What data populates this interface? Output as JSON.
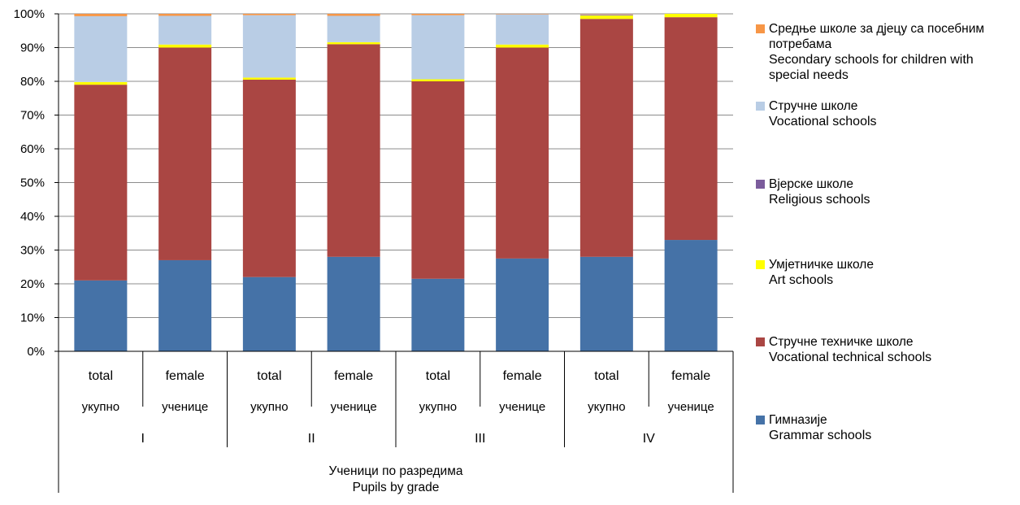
{
  "chart_data": {
    "type": "bar",
    "stacked": "percent",
    "y_ticks": [
      "0%",
      "10%",
      "20%",
      "30%",
      "40%",
      "50%",
      "60%",
      "70%",
      "80%",
      "90%",
      "100%"
    ],
    "ylim": [
      0,
      100
    ],
    "grid": true,
    "legend_position": "right",
    "categories": [
      {
        "en": "total",
        "local": "укупно",
        "grade": "I"
      },
      {
        "en": "female",
        "local": "ученице",
        "grade": "I"
      },
      {
        "en": "total",
        "local": "укупно",
        "grade": "II"
      },
      {
        "en": "female",
        "local": "ученице",
        "grade": "II"
      },
      {
        "en": "total",
        "local": "укупно",
        "grade": "III"
      },
      {
        "en": "female",
        "local": "ученице",
        "grade": "III"
      },
      {
        "en": "total",
        "local": "укупно",
        "grade": "IV"
      },
      {
        "en": "female",
        "local": "ученице",
        "grade": "IV"
      }
    ],
    "groups": [
      "I",
      "II",
      "III",
      "IV"
    ],
    "xlabel_local": "Ученици по разредима",
    "xlabel_en": "Pupils by grade",
    "series": [
      {
        "name_local": "Гимназије",
        "name_en": "Grammar schools",
        "color": "#4572a7",
        "values": [
          21,
          27,
          22,
          28,
          21.5,
          27.5,
          28,
          33
        ]
      },
      {
        "name_local": "Стручне техничке школе",
        "name_en": "Vocational technical schools",
        "color": "#aa4643",
        "values": [
          58,
          63,
          58.5,
          63,
          58.5,
          62.5,
          70.5,
          66
        ]
      },
      {
        "name_local": "Умјетничке школе",
        "name_en": "Art schools",
        "color": "#ffff00",
        "values": [
          0.8,
          0.9,
          0.6,
          0.6,
          0.6,
          0.9,
          1,
          1
        ]
      },
      {
        "name_local": "Вјерске школе",
        "name_en": "Religious schools",
        "color": "#7b5c9c",
        "values": [
          0,
          0,
          0,
          0,
          0,
          0,
          0.2,
          0
        ]
      },
      {
        "name_local": "Стручне школе",
        "name_en": "Vocational schools",
        "color": "#b9cde5",
        "values": [
          19.5,
          8.5,
          18.5,
          7.8,
          19,
          9,
          0.2,
          0
        ]
      },
      {
        "name_local": "Средње школе за дјецу са посебним потребама",
        "name_en": "Secondary schools for children with special needs",
        "color": "#f79646",
        "values": [
          0.7,
          0.6,
          0.4,
          0.6,
          0.4,
          0.1,
          0.1,
          0
        ]
      }
    ]
  }
}
